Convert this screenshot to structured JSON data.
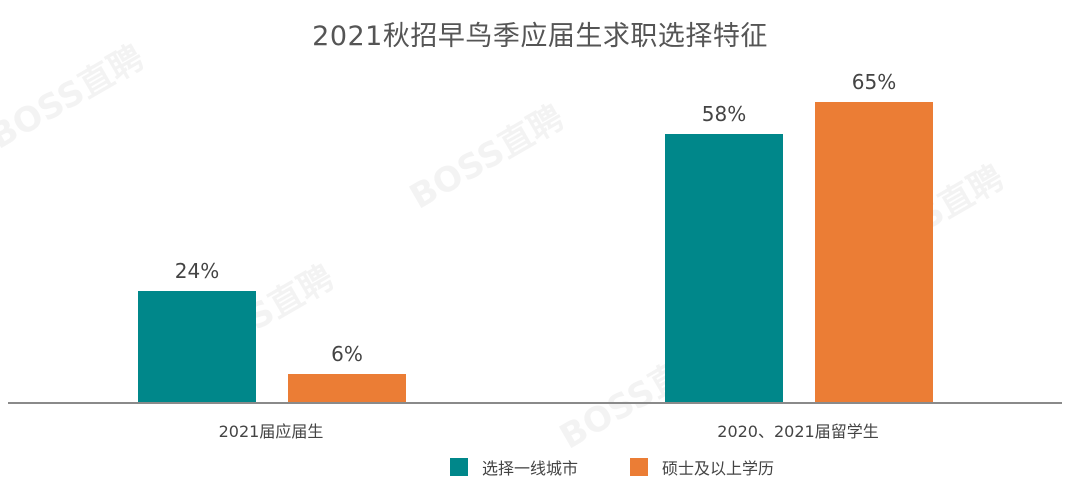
{
  "chart_data": {
    "type": "bar",
    "title": "2021秋招早鸟季应届生求职选择特征",
    "categories": [
      "2021届应届生",
      "2020、2021届留学生"
    ],
    "series": [
      {
        "name": "选择一线城市",
        "color": "#00878A",
        "values": [
          24,
          58
        ],
        "labels": [
          "24%",
          "58%"
        ]
      },
      {
        "name": "硕士及以上学历",
        "color": "#EB7D35",
        "values": [
          6,
          65
        ],
        "labels": [
          "6%",
          "65%"
        ]
      }
    ],
    "xlabel": "",
    "ylabel": "",
    "ylim": [
      0,
      70
    ],
    "unit": "%",
    "grid": false,
    "legend_position": "bottom"
  },
  "watermark": "BOSS直聘",
  "legend": [
    {
      "label": "选择一线城市",
      "color": "#00878A"
    },
    {
      "label": "硕士及以上学历",
      "color": "#EB7D35"
    }
  ]
}
